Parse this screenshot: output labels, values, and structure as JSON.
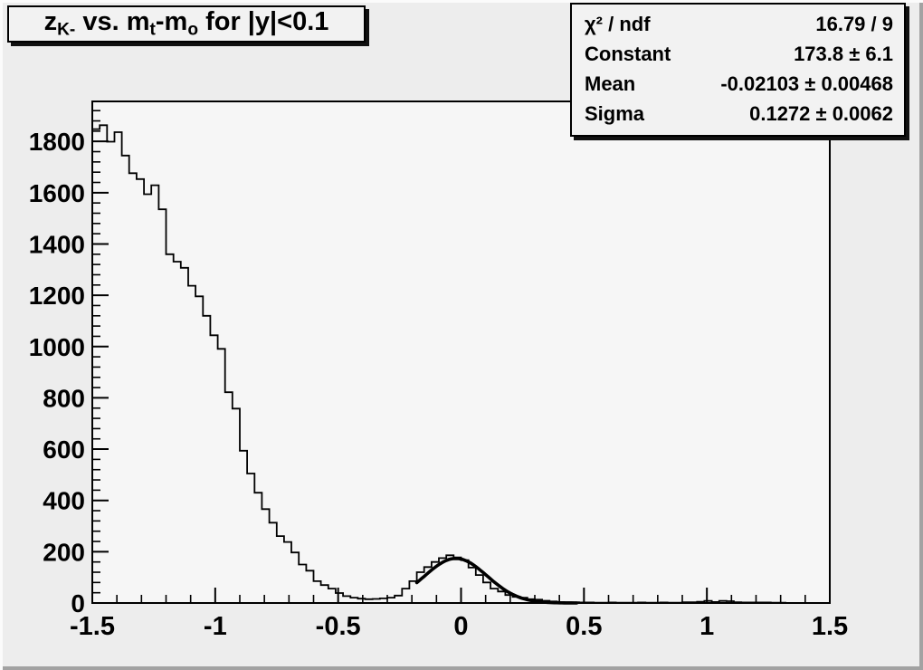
{
  "title_box": {
    "text": "zK- vs. mt-mo for |y|<0.1",
    "parts": [
      [
        "t",
        "z"
      ],
      [
        "s",
        "K-"
      ],
      [
        "t",
        " vs. m"
      ],
      [
        "s",
        "t"
      ],
      [
        "t",
        "-m"
      ],
      [
        "s",
        "o"
      ],
      [
        "t",
        " for |y|<0.1"
      ]
    ]
  },
  "stats_box": {
    "rows": [
      {
        "label": "χ² / ndf",
        "value": "16.79 / 9"
      },
      {
        "label": "Constant",
        "value": "173.8 ± 6.1"
      },
      {
        "label": "Mean",
        "value": "-0.02103 ± 0.00468"
      },
      {
        "label": "Sigma",
        "value": "0.1272 ± 0.0062"
      }
    ]
  },
  "colors": {
    "canvas_fill": "#ededed",
    "frame_fill": "#f6f6f6",
    "line_color": "#000000",
    "box_fill": "#f2f2f2",
    "shadow_color": "#111111"
  },
  "chart_data": {
    "type": "bar",
    "subtype": "step-histogram",
    "title": "zK- vs. mt-mo for |y|<0.1",
    "xlabel": "",
    "ylabel": "",
    "xlim": [
      -1.5,
      1.5
    ],
    "ylim": [
      0,
      1956
    ],
    "x_start": -1.5,
    "bin_width": 0.03,
    "x_ticks": [
      -1.5,
      -1,
      -0.5,
      0,
      0.5,
      1,
      1.5
    ],
    "x_tick_labels": [
      "-1.5",
      "-1",
      "-0.5",
      "0",
      "0.5",
      "1",
      "1.5"
    ],
    "x_minor_step": 0.1,
    "y_ticks": [
      0,
      200,
      400,
      600,
      800,
      1000,
      1200,
      1400,
      1600,
      1800
    ],
    "y_tick_labels": [
      "0",
      "200",
      "400",
      "600",
      "800",
      "1000",
      "1200",
      "1400",
      "1600",
      "1800"
    ],
    "y_minor_step": 40,
    "grid": false,
    "legend": false,
    "values": [
      1848,
      1863,
      1799,
      1836,
      1745,
      1676,
      1653,
      1594,
      1629,
      1535,
      1360,
      1331,
      1307,
      1237,
      1196,
      1120,
      1044,
      991,
      822,
      758,
      594,
      505,
      430,
      366,
      313,
      261,
      238,
      197,
      150,
      126,
      85,
      70,
      56,
      39,
      27,
      21,
      17,
      15,
      16,
      18,
      21,
      29,
      56,
      85,
      120,
      140,
      160,
      175,
      186,
      178,
      167,
      138,
      109,
      80,
      56,
      45,
      31,
      24,
      21,
      15,
      13,
      9,
      6,
      4,
      3,
      3,
      2,
      2,
      1,
      1,
      2,
      1,
      1,
      1,
      2,
      1,
      1,
      2,
      1,
      1,
      3,
      3,
      5,
      8,
      4,
      8,
      7,
      3,
      2,
      2,
      2,
      2,
      1,
      1,
      0,
      0,
      0,
      0,
      0,
      0
    ],
    "fit": {
      "type": "gaussian",
      "constant": 173.8,
      "mean": -0.02103,
      "sigma": 0.1272,
      "chi2": 16.79,
      "ndf": 9,
      "draw_range": [
        -0.18,
        0.47
      ]
    }
  }
}
